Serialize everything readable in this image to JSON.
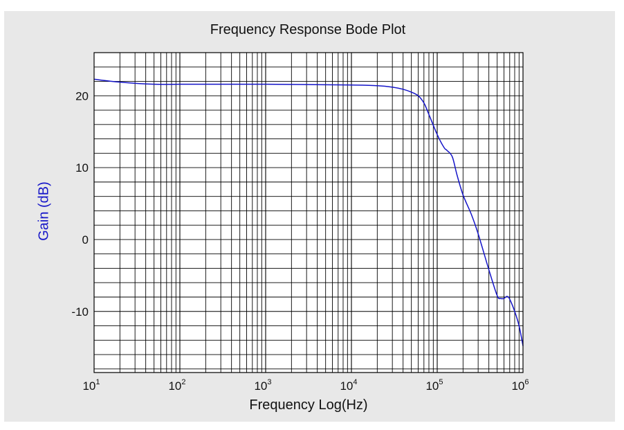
{
  "chart_data": {
    "type": "line",
    "title": "Frequency Response Bode Plot",
    "xlabel": "Frequency Log(Hz)",
    "ylabel": "Gain (dB)",
    "x_scale": "log",
    "xlim": [
      10,
      1000000
    ],
    "ylim": [
      -18.5,
      26
    ],
    "grid": true,
    "x_ticks": [
      {
        "base": "10",
        "exp": "1",
        "value": 10
      },
      {
        "base": "10",
        "exp": "2",
        "value": 100
      },
      {
        "base": "10",
        "exp": "3",
        "value": 1000
      },
      {
        "base": "10",
        "exp": "4",
        "value": 10000
      },
      {
        "base": "10",
        "exp": "5",
        "value": 100000
      },
      {
        "base": "10",
        "exp": "6",
        "value": 1000000
      }
    ],
    "y_ticks": [
      {
        "label": "20",
        "value": 20
      },
      {
        "label": "10",
        "value": 10
      },
      {
        "label": "0",
        "value": 0
      },
      {
        "label": "-10",
        "value": -10
      }
    ],
    "series": [
      {
        "color": "#1414c8",
        "x": [
          10,
          20,
          50,
          100,
          1000,
          10000,
          20000,
          30000,
          40000,
          50000,
          60000,
          70000,
          80000,
          100000,
          120000,
          130000,
          150000,
          170000,
          200000,
          250000,
          300000,
          400000,
          500000,
          550000,
          600000,
          650000,
          700000,
          800000,
          900000,
          1000000
        ],
        "y": [
          22.3,
          21.9,
          21.6,
          21.6,
          21.6,
          21.5,
          21.4,
          21.2,
          20.9,
          20.5,
          20.0,
          19.0,
          17.4,
          14.6,
          12.8,
          12.4,
          11.5,
          9.0,
          6.2,
          3.5,
          0.8,
          -4.2,
          -7.8,
          -8.2,
          -8.2,
          -7.9,
          -8.3,
          -10.0,
          -12.0,
          -14.8
        ]
      }
    ]
  }
}
